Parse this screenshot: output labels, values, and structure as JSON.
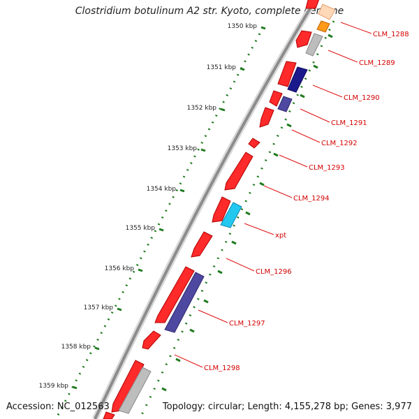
{
  "title": "Clostridium botulinum A2 str. Kyoto, complete genome",
  "footer": {
    "accession": "Accession: NC_012563",
    "summary": "Topology: circular; Length: 4,155,278 bp; Genes: 3,977"
  },
  "colors": {
    "backbone": "#8c8c8c",
    "tick": "#1f7a1f",
    "label_line": "#e01010",
    "label_text": "#d40000"
  },
  "kbp_ticks": [
    "1350 kbp",
    "1351 kbp",
    "1352 kbp",
    "1353 kbp",
    "1354 kbp",
    "1355 kbp",
    "1356 kbp",
    "1357 kbp",
    "1358 kbp",
    "1359 kbp"
  ],
  "gene_labels": [
    "CLM_1288",
    "CLM_1289",
    "CLM_1290",
    "CLM_1291",
    "CLM_1292",
    "CLM_1293",
    "CLM_1294",
    "xpt",
    "CLM_1296",
    "CLM_1297",
    "CLM_1298"
  ]
}
